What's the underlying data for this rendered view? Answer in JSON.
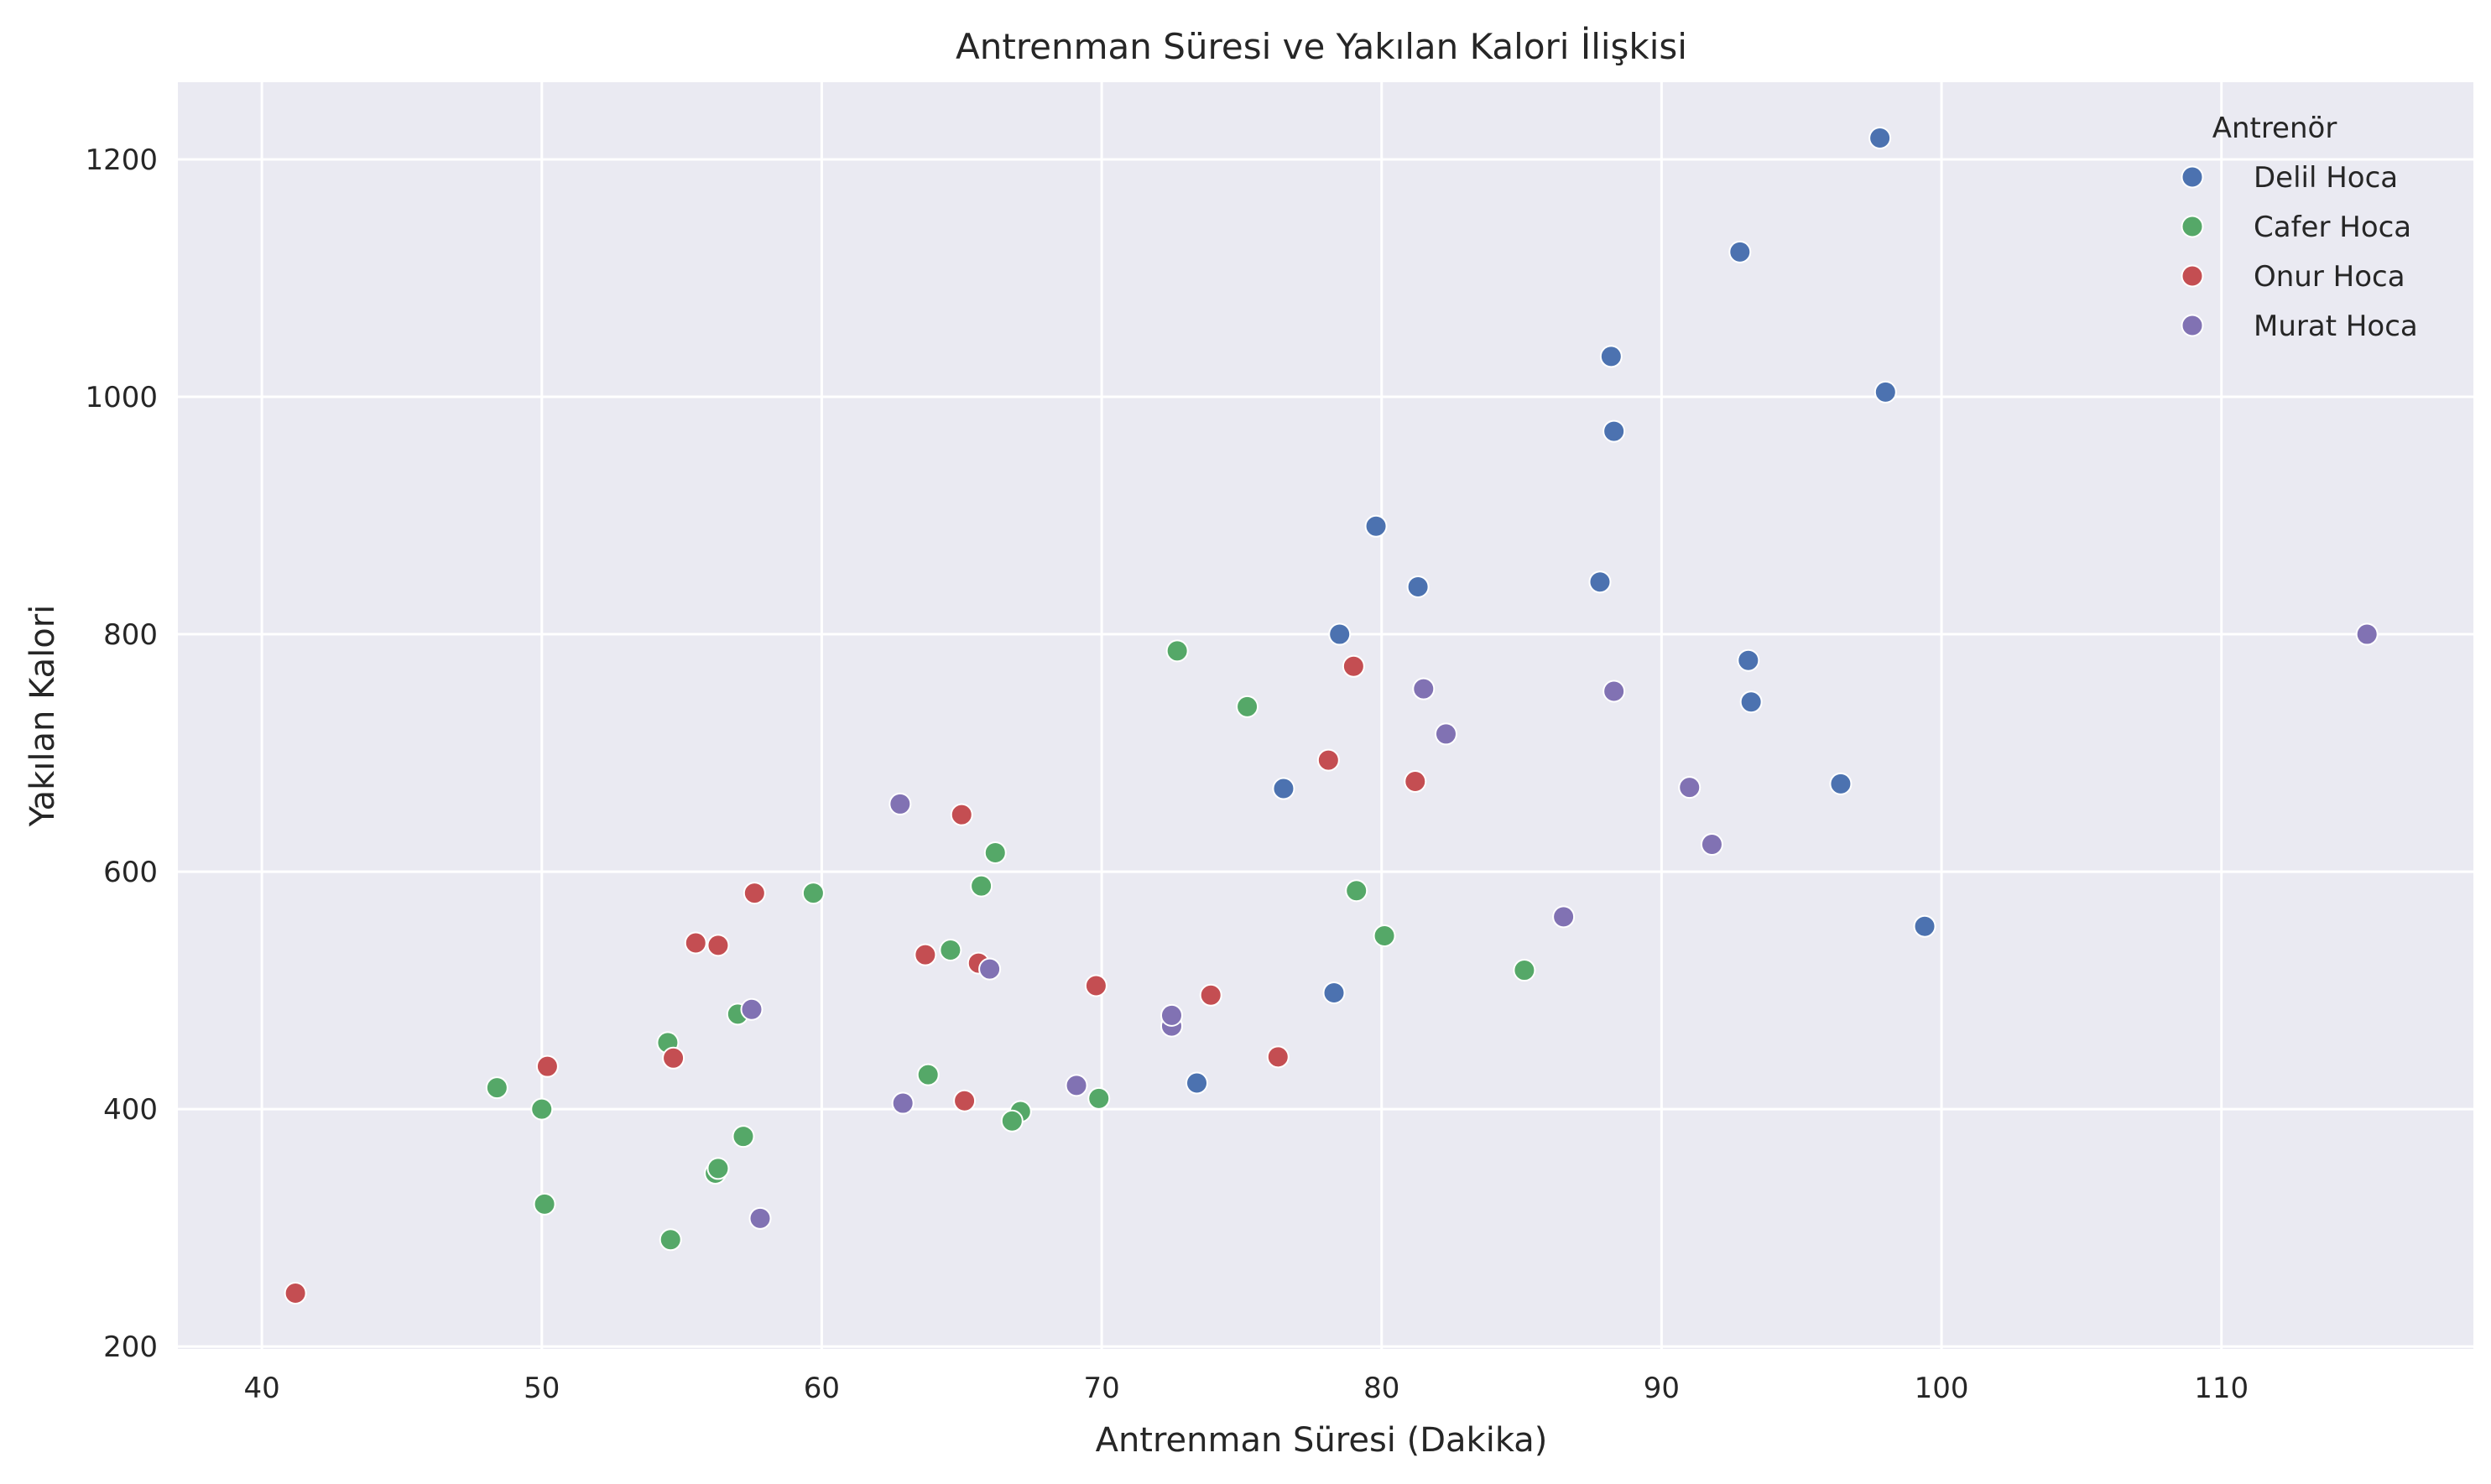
{
  "chart_data": {
    "type": "scatter",
    "title": "Antrenman Süresi ve Yakılan Kalori İlişkisi",
    "xlabel": "Antrenman Süresi (Dakika)",
    "ylabel": "Yakılan Kalori",
    "xlim": [
      37,
      119
    ],
    "ylim": [
      198,
      1265
    ],
    "xticks": [
      40,
      50,
      60,
      70,
      80,
      90,
      100,
      110
    ],
    "yticks": [
      200,
      400,
      600,
      800,
      1000,
      1200
    ],
    "grid": true,
    "background": "#eaeaf2",
    "legend": {
      "title": "Antrenör",
      "position": "top-right"
    },
    "series": [
      {
        "name": "Delil Hoca",
        "color": "#4c72b0",
        "points": [
          [
            97.8,
            1218
          ],
          [
            92.8,
            1122
          ],
          [
            88.2,
            1034
          ],
          [
            98,
            1004
          ],
          [
            88.3,
            971
          ],
          [
            79.8,
            891
          ],
          [
            81.3,
            840
          ],
          [
            87.8,
            844
          ],
          [
            78.5,
            800
          ],
          [
            93.1,
            778
          ],
          [
            93.2,
            743
          ],
          [
            76.5,
            670
          ],
          [
            96.4,
            674
          ],
          [
            99.4,
            554
          ],
          [
            78.3,
            498
          ],
          [
            73.4,
            422
          ]
        ]
      },
      {
        "name": "Cafer Hoca",
        "color": "#55a868",
        "points": [
          [
            72.7,
            786
          ],
          [
            75.2,
            739
          ],
          [
            66.2,
            616
          ],
          [
            59.7,
            582
          ],
          [
            65.7,
            588
          ],
          [
            79.1,
            584
          ],
          [
            80.1,
            546
          ],
          [
            64.6,
            534
          ],
          [
            85.1,
            517
          ],
          [
            57,
            480
          ],
          [
            54.5,
            456
          ],
          [
            48.4,
            418
          ],
          [
            50,
            400
          ],
          [
            63.8,
            429
          ],
          [
            69.9,
            409
          ],
          [
            67.1,
            398
          ],
          [
            66.8,
            390
          ],
          [
            57.2,
            377
          ],
          [
            56.2,
            346
          ],
          [
            56.3,
            350
          ],
          [
            50.1,
            320
          ],
          [
            54.6,
            290
          ]
        ]
      },
      {
        "name": "Onur Hoca",
        "color": "#c44e52",
        "points": [
          [
            79,
            773
          ],
          [
            78.1,
            694
          ],
          [
            81.2,
            676
          ],
          [
            65,
            648
          ],
          [
            57.6,
            582
          ],
          [
            55.5,
            540
          ],
          [
            56.3,
            538
          ],
          [
            63.7,
            530
          ],
          [
            65.6,
            523
          ],
          [
            69.8,
            504
          ],
          [
            73.9,
            496
          ],
          [
            50.2,
            436
          ],
          [
            54.7,
            443
          ],
          [
            76.3,
            444
          ],
          [
            65.1,
            407
          ],
          [
            41.2,
            245
          ]
        ]
      },
      {
        "name": "Murat Hoca",
        "color": "#8172b3",
        "points": [
          [
            115.2,
            800
          ],
          [
            81.5,
            754
          ],
          [
            88.3,
            752
          ],
          [
            82.3,
            716
          ],
          [
            91,
            671
          ],
          [
            62.8,
            657
          ],
          [
            91.8,
            623
          ],
          [
            86.5,
            562
          ],
          [
            66,
            518
          ],
          [
            57.5,
            484
          ],
          [
            72.5,
            470
          ],
          [
            72.5,
            479
          ],
          [
            69.1,
            420
          ],
          [
            62.9,
            405
          ],
          [
            57.8,
            308
          ]
        ]
      }
    ]
  }
}
